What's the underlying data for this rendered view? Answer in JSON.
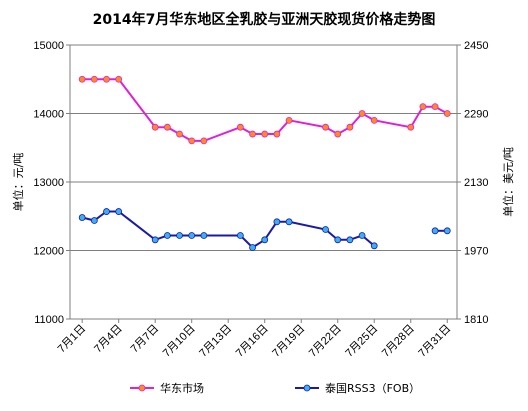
{
  "chart_data": {
    "type": "line",
    "title": "2014年7月华东地区全乳胶与亚洲天胶现货价格走势图",
    "ylabel_left": "单位：元/吨",
    "ylabel_right": "单位：美元/吨",
    "ylim_left": [
      11000,
      15000
    ],
    "yticks_left": [
      "11000",
      "12000",
      "13000",
      "14000",
      "15000"
    ],
    "ylim_right": [
      1810,
      2450
    ],
    "yticks_right": [
      "1810",
      "1970",
      "2130",
      "2290",
      "2450"
    ],
    "xlim_day": [
      0,
      31.8
    ],
    "x_tick_labels": [
      "7月1日",
      "7月4日",
      "7月7日",
      "7月10日",
      "7月13日",
      "7月16日",
      "7月19日",
      "7月22日",
      "7月25日",
      "7月28日",
      "7月31日"
    ],
    "x_tick_days": [
      1,
      4,
      7,
      10,
      13,
      16,
      19,
      22,
      25,
      28,
      31
    ],
    "grid": true,
    "legend_position": "bottom",
    "series": [
      {
        "name": "华东市场",
        "axis": "left",
        "color": "#e020d8",
        "marker_color": "#ff8c1a",
        "x": [
          "7月1日",
          "7月2日",
          "7月3日",
          "7月4日",
          "7月7日",
          "7月8日",
          "7月9日",
          "7月10日",
          "7月11日",
          "7月14日",
          "7月15日",
          "7月16日",
          "7月17日",
          "7月18日",
          "7月21日",
          "7月22日",
          "7月23日",
          "7月24日",
          "7月25日",
          "7月28日",
          "7月29日",
          "7月30日",
          "7月31日"
        ],
        "x_day": [
          1,
          2,
          3,
          4,
          7,
          8,
          9,
          10,
          11,
          14,
          15,
          16,
          17,
          18,
          21,
          22,
          23,
          24,
          25,
          28,
          29,
          30,
          31
        ],
        "values": [
          14500,
          14500,
          14500,
          14500,
          13800,
          13800,
          13700,
          13600,
          13600,
          13800,
          13700,
          13700,
          13700,
          13900,
          13800,
          13700,
          13800,
          14000,
          13900,
          13800,
          14100,
          14100,
          14000
        ]
      },
      {
        "name": "泰国RSS3（FOB）",
        "axis": "right",
        "color": "#1a1aa8",
        "marker_color": "#3ab0f0",
        "segments": [
          {
            "x": [
              "7月1日",
              "7月2日",
              "7月3日",
              "7月4日",
              "7月7日",
              "7月8日",
              "7月9日",
              "7月10日",
              "7月11日",
              "7月14日",
              "7月15日",
              "7月16日",
              "7月17日",
              "7月18日",
              "7月21日",
              "7月22日",
              "7月23日",
              "7月24日",
              "7月25日"
            ],
            "x_day": [
              1,
              2,
              3,
              4,
              7,
              8,
              9,
              10,
              11,
              14,
              15,
              16,
              17,
              18,
              21,
              22,
              23,
              24,
              25
            ],
            "values": [
              2047,
              2040,
              2061,
              2061,
              1995,
              2005,
              2005,
              2005,
              2005,
              2005,
              1977,
              1995,
              2037,
              2037,
              2019,
              1995,
              1995,
              2005,
              1981
            ]
          },
          {
            "x": [
              "7月30日",
              "7月31日"
            ],
            "x_day": [
              30,
              31
            ],
            "values": [
              2016,
              2016
            ]
          }
        ]
      }
    ]
  }
}
